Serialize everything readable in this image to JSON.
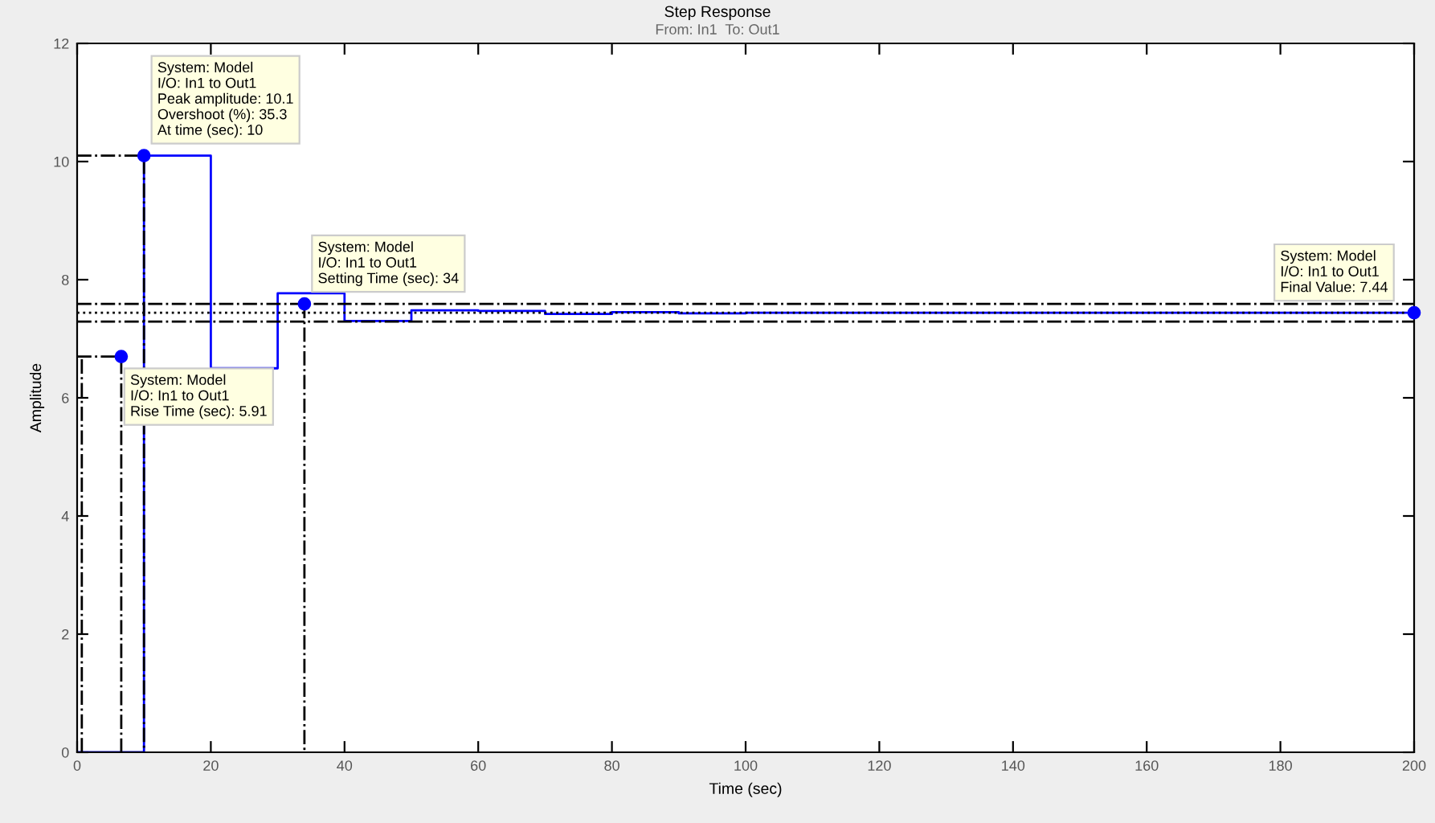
{
  "chart_data": {
    "type": "step",
    "title": "Step Response",
    "subtitle": "From: In1  To: Out1",
    "xlabel": "Time (sec)",
    "ylabel": "Amplitude",
    "x": [
      0,
      10,
      20,
      30,
      40,
      50,
      60,
      70,
      80,
      90,
      100,
      110,
      120,
      130,
      140,
      150,
      160,
      170,
      180,
      190,
      200
    ],
    "series": [
      {
        "color": "#0000ff",
        "values": [
          0,
          10.1,
          6.5,
          7.77,
          7.3,
          7.48,
          7.47,
          7.42,
          7.45,
          7.43,
          7.44,
          7.44,
          7.44,
          7.44,
          7.44,
          7.44,
          7.44,
          7.44,
          7.44,
          7.44,
          7.44
        ]
      },
      {
        "type": "line",
        "color": "#000000",
        "line_style": "dashed",
        "x": [
          0,
          6.6,
          6.6
        ],
        "values": [
          6.7,
          6.7,
          0
        ]
      },
      {
        "type": "line",
        "color": "#000000",
        "line_style": "dashed",
        "x": [
          0.7,
          0.7
        ],
        "values": [
          0,
          6.7
        ]
      },
      {
        "type": "line",
        "color": "#000000",
        "line_style": "dashed",
        "x": [
          0,
          10,
          10
        ],
        "values": [
          10.1,
          10.1,
          0
        ]
      },
      {
        "type": "line",
        "color": "#000000",
        "line_style": "dashed",
        "x": [
          34,
          34
        ],
        "values": [
          7.59,
          0
        ]
      },
      {
        "type": "scatter",
        "color": "#0000ff",
        "marker": "circle",
        "x": [
          6.6,
          10,
          34,
          200
        ],
        "values": [
          6.7,
          10.1,
          7.59,
          7.44
        ]
      }
    ],
    "ref_lines": [
      {
        "axis": "y",
        "value": 7.59,
        "color": "#000000",
        "line_style": "dashed"
      },
      {
        "axis": "y",
        "value": 7.29,
        "color": "#000000",
        "line_style": "dashed"
      },
      {
        "axis": "y",
        "value": 7.44,
        "color": "#000000",
        "line_style": "dotted"
      }
    ],
    "annotations": [
      {
        "text": "System: Model\nI/O: In1 to Out1\nPeak amplitude: 10.1\nOvershoot (%): 35.3\nAt time (sec): 10",
        "x": 10,
        "y": 10.1
      },
      {
        "text": "System: Model\nI/O: In1 to Out1\nRise Time (sec): 5.91",
        "x": 6.6,
        "y": 6.7
      },
      {
        "text": "System: Model\nI/O: In1 to Out1\nSetting Time (sec): 34",
        "x": 34,
        "y": 7.59
      },
      {
        "text": "System: Model\nI/O: In1 to Out1\nFinal Value: 7.44",
        "x": 200,
        "y": 7.44
      }
    ],
    "xlim": [
      0,
      200
    ],
    "xticks": [
      0,
      20,
      40,
      60,
      80,
      100,
      120,
      140,
      160,
      180,
      200
    ],
    "ylim": [
      0,
      12
    ],
    "yticks": [
      0,
      2,
      4,
      6,
      8,
      10,
      12
    ],
    "grid": false,
    "legend": false
  }
}
